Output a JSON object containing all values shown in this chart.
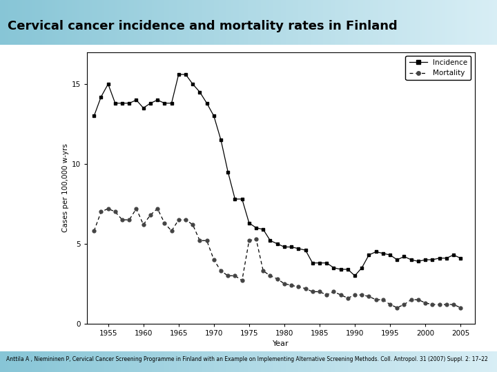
{
  "title": "Cervical cancer incidence and mortality rates in Finland",
  "xlabel": "Year",
  "ylabel": "Cases per 100,000 w-yrs",
  "background_color": "#ffffff",
  "header_bg_left": "#87c5d6",
  "header_bg_right": "#d0eaf2",
  "footer_bg": "#87c5d6",
  "footer_text": "Anttila A , Niemininen P, Cervical Cancer Screening Programme in Finland with an Example on Implementing Alternative Screening Methods. Coll. Antropol. 31 (2007) Suppl. 2: 17–22",
  "incidence_years": [
    1953,
    1954,
    1955,
    1956,
    1957,
    1958,
    1959,
    1960,
    1961,
    1962,
    1963,
    1964,
    1965,
    1966,
    1967,
    1968,
    1969,
    1970,
    1971,
    1972,
    1973,
    1974,
    1975,
    1976,
    1977,
    1978,
    1979,
    1980,
    1981,
    1982,
    1983,
    1984,
    1985,
    1986,
    1987,
    1988,
    1989,
    1990,
    1991,
    1992,
    1993,
    1994,
    1995,
    1996,
    1997,
    1998,
    1999,
    2000,
    2001,
    2002,
    2003,
    2004,
    2005
  ],
  "incidence_values": [
    13.0,
    14.2,
    15.0,
    13.8,
    13.8,
    13.8,
    14.0,
    13.5,
    13.8,
    14.0,
    13.8,
    13.8,
    15.6,
    15.6,
    15.0,
    14.5,
    13.8,
    13.0,
    11.5,
    9.5,
    7.8,
    7.8,
    6.3,
    6.0,
    5.9,
    5.2,
    5.0,
    4.8,
    4.8,
    4.7,
    4.6,
    3.8,
    3.8,
    3.8,
    3.5,
    3.4,
    3.4,
    3.0,
    3.5,
    4.3,
    4.5,
    4.4,
    4.3,
    4.0,
    4.2,
    4.0,
    3.9,
    4.0,
    4.0,
    4.1,
    4.1,
    4.3,
    4.1
  ],
  "mortality_years": [
    1953,
    1954,
    1955,
    1956,
    1957,
    1958,
    1959,
    1960,
    1961,
    1962,
    1963,
    1964,
    1965,
    1966,
    1967,
    1968,
    1969,
    1970,
    1971,
    1972,
    1973,
    1974,
    1975,
    1976,
    1977,
    1978,
    1979,
    1980,
    1981,
    1982,
    1983,
    1984,
    1985,
    1986,
    1987,
    1988,
    1989,
    1990,
    1991,
    1992,
    1993,
    1994,
    1995,
    1996,
    1997,
    1998,
    1999,
    2000,
    2001,
    2002,
    2003,
    2004,
    2005
  ],
  "mortality_values": [
    5.8,
    7.0,
    7.2,
    7.0,
    6.5,
    6.5,
    7.2,
    6.2,
    6.8,
    7.2,
    6.3,
    5.8,
    6.5,
    6.5,
    6.2,
    5.2,
    5.2,
    4.0,
    3.3,
    3.0,
    3.0,
    2.7,
    5.2,
    5.3,
    3.3,
    3.0,
    2.8,
    2.5,
    2.4,
    2.3,
    2.2,
    2.0,
    2.0,
    1.8,
    2.0,
    1.8,
    1.6,
    1.8,
    1.8,
    1.7,
    1.5,
    1.5,
    1.2,
    1.0,
    1.2,
    1.5,
    1.5,
    1.3,
    1.2,
    1.2,
    1.2,
    1.2,
    1.0
  ],
  "ylim": [
    0,
    17
  ],
  "yticks": [
    0,
    5,
    10,
    15
  ],
  "xticks": [
    1955,
    1960,
    1965,
    1970,
    1975,
    1980,
    1985,
    1990,
    1995,
    2000,
    2005
  ]
}
